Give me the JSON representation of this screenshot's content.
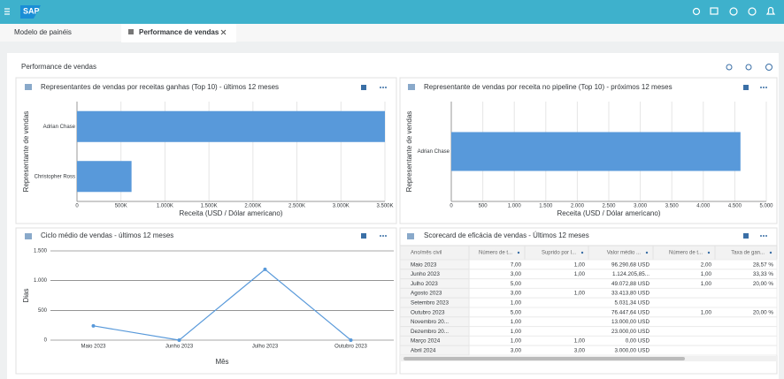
{
  "header": {
    "logo": "SAP"
  },
  "tabs": [
    "Modelo de painéis",
    "Performance de vendas"
  ],
  "page_title": "Performance de vendas",
  "chart_data": [
    {
      "type": "bar",
      "orientation": "horizontal",
      "title": "Representantes de vendas por receitas ganhas (Top 10) - últimos 12 meses",
      "categories": [
        "Adrian Chase",
        "Christopher Ross"
      ],
      "values": [
        3500000,
        620000
      ],
      "color": "#5899da",
      "xlabel": "Receita (USD / Dólar americano)",
      "ylabel": "Representante de vendas",
      "xlim": [
        0,
        3500000
      ],
      "xticks": [
        0,
        {
          "value": 500000,
          "label": "500K"
        },
        {
          "value": 1000000,
          "label": "1.000K"
        },
        {
          "value": 1500000,
          "label": "1.500K"
        },
        {
          "value": 2000000,
          "label": "2.000K"
        },
        {
          "value": 2500000,
          "label": "2.500K"
        },
        {
          "value": 3000000,
          "label": "3.000K"
        },
        {
          "value": 3500000,
          "label": "3.500K"
        }
      ],
      "grid": true
    },
    {
      "type": "bar",
      "orientation": "horizontal",
      "title": "Representante de vendas por receita no pipeline (Top 10) - próximos 12 meses",
      "categories": [
        "Adrian Chase"
      ],
      "values": [
        4590
      ],
      "color": "#5899da",
      "xlabel": "Receita (USD / Dólar americano)",
      "ylabel": "Representante de vendas",
      "xlim": [
        0,
        5000
      ],
      "xticks": [
        0,
        500,
        {
          "value": 1000,
          "label": "1.000"
        },
        {
          "value": 1500,
          "label": "1.500"
        },
        {
          "value": 2000,
          "label": "2.000"
        },
        {
          "value": 2500,
          "label": "2.500"
        },
        {
          "value": 3000,
          "label": "3.000"
        },
        {
          "value": 3500,
          "label": "3.500"
        },
        {
          "value": 4000,
          "label": "4.000"
        },
        {
          "value": 4500,
          "label": "4.500"
        },
        {
          "value": 5000,
          "label": "5.000"
        }
      ],
      "grid": true
    },
    {
      "type": "line",
      "title": "Ciclo médio de vendas - últimos 12 meses",
      "categories": [
        "Maio 2023",
        "Junho 2023",
        "Julho 2023",
        "Outubro 2023"
      ],
      "values": [
        240,
        0,
        1190,
        0
      ],
      "color": "#5899da",
      "xlabel": "Mês",
      "ylabel": "Dias",
      "ylim": [
        0,
        1500
      ],
      "yticks": [
        0,
        500,
        {
          "value": 1000,
          "label": "1.000"
        },
        {
          "value": 1500,
          "label": "1.500"
        }
      ],
      "grid": true
    }
  ],
  "table": {
    "title": "Scorecard de eficácia de vendas - Últimos 12 meses",
    "columns": [
      "Ano/mês civil",
      "Número de t...",
      "Suprido por l...",
      "Valor médio ...",
      "Número de t...",
      "Taxa de gan..."
    ],
    "rows": [
      [
        "Maio 2023",
        "7,00",
        "1,00",
        "96.290,68 USD",
        "2,00",
        "28,57 %"
      ],
      [
        "Junho 2023",
        "3,00",
        "1,00",
        "1.124.205,85...",
        "1,00",
        "33,33 %"
      ],
      [
        "Julho 2023",
        "5,00",
        null,
        "49.072,88 USD",
        "1,00",
        "20,00 %"
      ],
      [
        "Agosto 2023",
        "3,00",
        "1,00",
        "33.413,80 USD",
        null,
        null
      ],
      [
        "Setembro 2023",
        "1,00",
        null,
        "5.031,34 USD",
        null,
        null
      ],
      [
        "Outubro 2023",
        "5,00",
        null,
        "76.447,64 USD",
        "1,00",
        "20,00 %"
      ],
      [
        "Novembro 20...",
        "1,00",
        null,
        "13.000,00 USD",
        null,
        null
      ],
      [
        "Dezembro 20...",
        "1,00",
        null,
        "23.000,00 USD",
        null,
        null
      ],
      [
        "Março 2024",
        "1,00",
        "1,00",
        "0,00 USD",
        null,
        null
      ],
      [
        "Abril 2024",
        "3,00",
        "3,00",
        "3.000,00 USD",
        null,
        null
      ]
    ]
  }
}
